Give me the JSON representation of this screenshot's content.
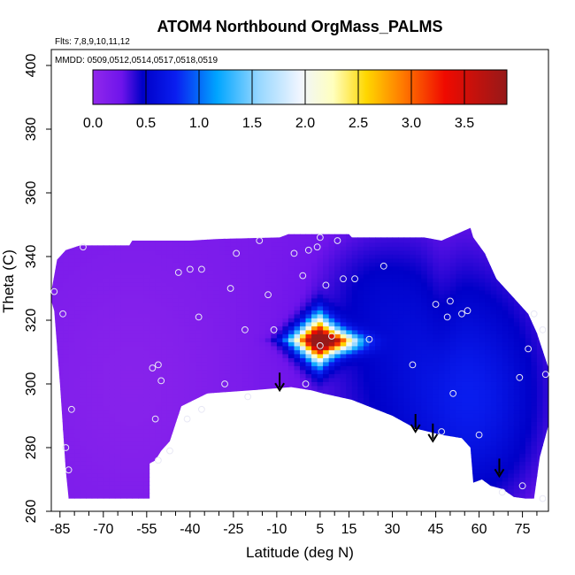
{
  "chart_data": {
    "type": "heatmap",
    "title": "ATOM4 Northbound OrgMass_PALMS",
    "flights_label": "Flts: 7,8,9,10,11,12",
    "dates_label": "MMDD: 0509,0512,0514,0517,0518,0519",
    "xlabel": "Latitude (deg N)",
    "ylabel": "Theta (C)",
    "xlim": [
      -88,
      84
    ],
    "ylim": [
      260,
      405
    ],
    "x_ticks": [
      "-85",
      "-70",
      "-55",
      "-40",
      "-25",
      "-10",
      "5",
      "15",
      "30",
      "45",
      "60",
      "75"
    ],
    "y_ticks": [
      "260",
      "280",
      "300",
      "320",
      "340",
      "360",
      "380",
      "400"
    ],
    "colorbar": {
      "min": 0,
      "max": 3.9,
      "ticks": [
        "0.0",
        "0.5",
        "1.0",
        "1.5",
        "2.0",
        "2.5",
        "3.0",
        "3.5"
      ]
    },
    "grid": false,
    "observations": [
      {
        "lat": -87,
        "theta": 329
      },
      {
        "lat": -84,
        "theta": 322
      },
      {
        "lat": -83,
        "theta": 280
      },
      {
        "lat": -82,
        "theta": 273
      },
      {
        "lat": -81,
        "theta": 292
      },
      {
        "lat": -77,
        "theta": 343
      },
      {
        "lat": -53,
        "theta": 305
      },
      {
        "lat": -51,
        "theta": 306
      },
      {
        "lat": -50,
        "theta": 301
      },
      {
        "lat": -52,
        "theta": 289
      },
      {
        "lat": -51,
        "theta": 276
      },
      {
        "lat": -47,
        "theta": 279
      },
      {
        "lat": -44,
        "theta": 335
      },
      {
        "lat": -40,
        "theta": 336
      },
      {
        "lat": -36,
        "theta": 336
      },
      {
        "lat": -37,
        "theta": 321
      },
      {
        "lat": -41,
        "theta": 289
      },
      {
        "lat": -36,
        "theta": 292
      },
      {
        "lat": -28,
        "theta": 300
      },
      {
        "lat": -26,
        "theta": 330
      },
      {
        "lat": -24,
        "theta": 341
      },
      {
        "lat": -21,
        "theta": 317
      },
      {
        "lat": -20,
        "theta": 296
      },
      {
        "lat": -16,
        "theta": 345
      },
      {
        "lat": -13,
        "theta": 328
      },
      {
        "lat": -11,
        "theta": 317
      },
      {
        "lat": -4,
        "theta": 341
      },
      {
        "lat": -1,
        "theta": 334
      },
      {
        "lat": 1,
        "theta": 342
      },
      {
        "lat": 4,
        "theta": 343
      },
      {
        "lat": 5,
        "theta": 346
      },
      {
        "lat": 7,
        "theta": 331
      },
      {
        "lat": 9,
        "theta": 315
      },
      {
        "lat": 5,
        "theta": 312
      },
      {
        "lat": 0,
        "theta": 300
      },
      {
        "lat": 11,
        "theta": 345
      },
      {
        "lat": 13,
        "theta": 333
      },
      {
        "lat": 17,
        "theta": 333
      },
      {
        "lat": 22,
        "theta": 314
      },
      {
        "lat": 27,
        "theta": 337
      },
      {
        "lat": 37,
        "theta": 306
      },
      {
        "lat": 45,
        "theta": 325
      },
      {
        "lat": 49,
        "theta": 321
      },
      {
        "lat": 50,
        "theta": 326
      },
      {
        "lat": 54,
        "theta": 322
      },
      {
        "lat": 56,
        "theta": 323
      },
      {
        "lat": 51,
        "theta": 297
      },
      {
        "lat": 47,
        "theta": 285
      },
      {
        "lat": 60,
        "theta": 284
      },
      {
        "lat": 68,
        "theta": 266
      },
      {
        "lat": 74,
        "theta": 302
      },
      {
        "lat": 75,
        "theta": 268
      },
      {
        "lat": 77,
        "theta": 311
      },
      {
        "lat": 79,
        "theta": 322
      },
      {
        "lat": 82,
        "theta": 317
      },
      {
        "lat": 83,
        "theta": 303
      },
      {
        "lat": 82,
        "theta": 264
      }
    ],
    "arrows": [
      {
        "lat": -9,
        "theta": 298
      },
      {
        "lat": 38,
        "theta": 285
      },
      {
        "lat": 44,
        "theta": 282
      },
      {
        "lat": 67,
        "theta": 271
      }
    ],
    "hotspot": {
      "lat": 4,
      "theta": 314,
      "peak_value": 3.9
    }
  }
}
